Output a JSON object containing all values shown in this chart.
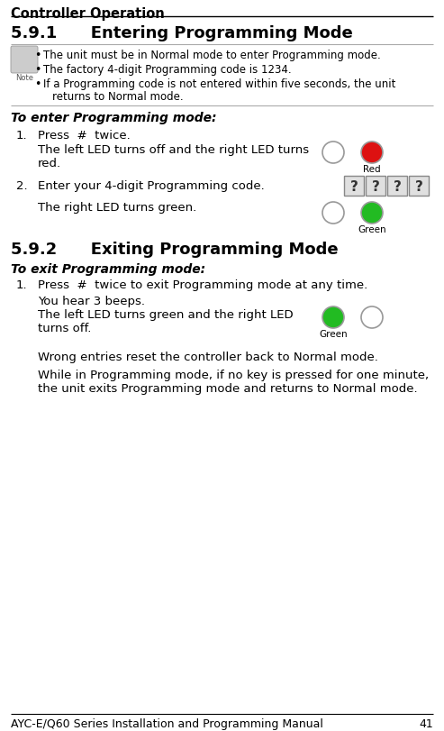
{
  "title_section": "Controller Operation",
  "section_591": "5.9.1      Entering Programming Mode",
  "section_592": "5.9.2      Exiting Programming Mode",
  "note_bullet1": "The unit must be in Normal mode to enter Programming mode.",
  "note_bullet2": "The factory 4-digit Programming code is 1234.",
  "note_bullet3": "If a Programming code is not entered within five seconds, the unit",
  "note_bullet3b": "returns to Normal mode.",
  "enter_header": "To enter Programming mode:",
  "step1_enter_num": "1.",
  "step1_enter_title": "Press  #  twice.",
  "step1_enter_body1": "The left LED turns off and the right LED turns",
  "step1_enter_body2": "red.",
  "step2_enter_num": "2.",
  "step2_enter_title": "Enter your 4-digit Programming code.",
  "step2_enter_body": "The right LED turns green.",
  "exit_header": "To exit Programming mode:",
  "step1_exit_num": "1.",
  "step1_exit_title": "Press  #  twice to exit Programming mode at any time.",
  "step1_exit_body1": "You hear 3 beeps.",
  "step1_exit_body2": "The left LED turns green and the right LED",
  "step1_exit_body3": "turns off.",
  "wrong_entries": "Wrong entries reset the controller back to Normal mode.",
  "while_in1": "While in Programming mode, if no key is pressed for one minute,",
  "while_in2": "the unit exits Programming mode and returns to Normal mode.",
  "footer": "AYC-E/Q60 Series Installation and Programming Manual",
  "page_num": "41",
  "bg_color": "#ffffff",
  "led_off_facecolor": "#ffffff",
  "led_red_facecolor": "#dd1111",
  "led_green_facecolor": "#22bb22",
  "led_edgecolor": "#999999",
  "keypad_facecolor": "#e0e0e0",
  "keypad_edgecolor": "#888888",
  "note_icon_color": "#aaaaaa",
  "line_color": "#aaaaaa",
  "header_line_color": "#000000"
}
